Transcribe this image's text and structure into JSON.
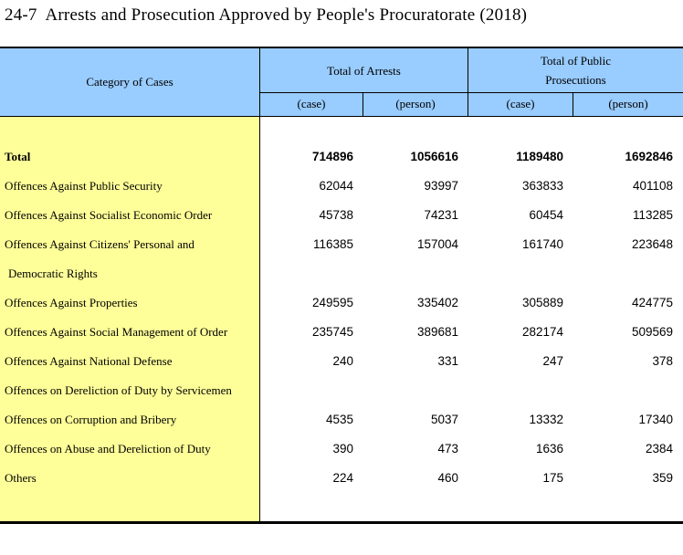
{
  "title": "24-7  Arrests and Prosecution Approved by People's Procuratorate (2018)",
  "colors": {
    "header_bg": "#99CCFF",
    "category_bg": "#FFFF99",
    "border": "#000000",
    "page_bg": "#FFFFFF"
  },
  "table": {
    "category_header": "Category of Cases",
    "groups": [
      {
        "label": "Total of Arrests",
        "sub": [
          "(case)",
          "(person)"
        ]
      },
      {
        "label": "Total of Public Prosecutions",
        "sub": [
          "(case)",
          "(person)"
        ]
      }
    ],
    "rows": [
      {
        "label": "Total",
        "bold": true,
        "values": [
          "714896",
          "1056616",
          "1189480",
          "1692846"
        ]
      },
      {
        "label": "Offences Against Public Security",
        "values": [
          "62044",
          "93997",
          "363833",
          "401108"
        ]
      },
      {
        "label": "Offences Against Socialist Economic Order",
        "values": [
          "45738",
          "74231",
          "60454",
          "113285"
        ]
      },
      {
        "label": "Offences Against Citizens' Personal and",
        "label2": "Democratic Rights",
        "values": [
          "116385",
          "157004",
          "161740",
          "223648"
        ]
      },
      {
        "label": "Offences Against Properties",
        "values": [
          "249595",
          "335402",
          "305889",
          "424775"
        ]
      },
      {
        "label": "Offences Against Social Management of Order",
        "values": [
          "235745",
          "389681",
          "282174",
          "509569"
        ]
      },
      {
        "label": "Offences Against National Defense",
        "values": [
          "240",
          "331",
          "247",
          "378"
        ]
      },
      {
        "label": "Offences on Dereliction of Duty by Servicemen",
        "values": [
          "",
          "",
          "",
          ""
        ]
      },
      {
        "label": "Offences on Corruption and Bribery",
        "values": [
          "4535",
          "5037",
          "13332",
          "17340"
        ]
      },
      {
        "label": "Offences on Abuse and Dereliction of Duty",
        "values": [
          "390",
          "473",
          "1636",
          "2384"
        ]
      },
      {
        "label": "Others",
        "values": [
          "224",
          "460",
          "175",
          "359"
        ]
      }
    ]
  }
}
